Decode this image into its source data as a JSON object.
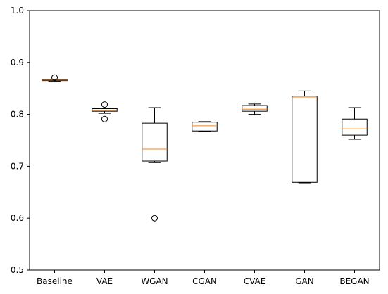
{
  "chart_data": {
    "type": "box",
    "title": "",
    "xlabel": "",
    "ylabel": "",
    "ylim": [
      0.5,
      1.0
    ],
    "yticks": [
      0.5,
      0.6,
      0.7,
      0.8,
      0.9,
      1.0
    ],
    "ytick_labels": [
      "0.5",
      "0.6",
      "0.7",
      "0.8",
      "0.9",
      "1.0"
    ],
    "grid": false,
    "legend": "none",
    "categories": [
      "Baseline",
      "VAE",
      "WGAN",
      "CGAN",
      "CVAE",
      "GAN",
      "BEGAN"
    ],
    "boxes": [
      {
        "label": "Baseline",
        "whisker_low": 0.864,
        "q1": 0.865,
        "median": 0.866,
        "q3": 0.867,
        "whisker_high": 0.867,
        "outliers": [
          0.871
        ]
      },
      {
        "label": "VAE",
        "whisker_low": 0.802,
        "q1": 0.806,
        "median": 0.808,
        "q3": 0.811,
        "whisker_high": 0.812,
        "outliers": [
          0.819,
          0.791
        ]
      },
      {
        "label": "WGAN",
        "whisker_low": 0.707,
        "q1": 0.71,
        "median": 0.733,
        "q3": 0.783,
        "whisker_high": 0.813,
        "outliers": [
          0.6
        ]
      },
      {
        "label": "CGAN",
        "whisker_low": 0.767,
        "q1": 0.768,
        "median": 0.778,
        "q3": 0.785,
        "whisker_high": 0.786,
        "outliers": []
      },
      {
        "label": "CVAE",
        "whisker_low": 0.8,
        "q1": 0.806,
        "median": 0.81,
        "q3": 0.817,
        "whisker_high": 0.82,
        "outliers": []
      },
      {
        "label": "GAN",
        "whisker_low": 0.668,
        "q1": 0.669,
        "median": 0.832,
        "q3": 0.835,
        "whisker_high": 0.845,
        "outliers": []
      },
      {
        "label": "BEGAN",
        "whisker_low": 0.752,
        "q1": 0.76,
        "median": 0.772,
        "q3": 0.791,
        "whisker_high": 0.813,
        "outliers": []
      }
    ],
    "colors": {
      "box": "#000000",
      "median": "#ff7f0e",
      "outlier": "#000000",
      "background": "#ffffff"
    }
  }
}
